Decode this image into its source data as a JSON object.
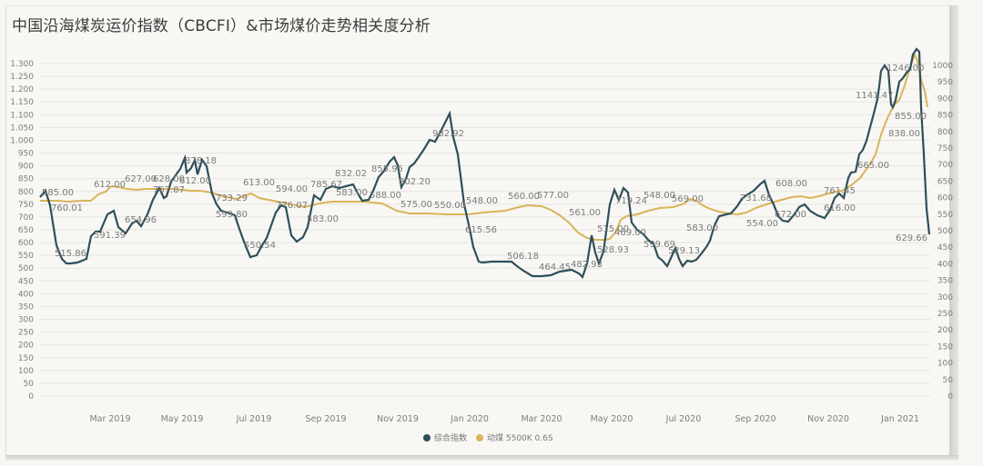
{
  "title": "中国沿海煤炭运价指数（CBCFI）&市场煤价走势相关度分析",
  "colors": {
    "cbcfi": "#2e4f5a",
    "coal": "#d9b45a",
    "grid": "#e6e5e1",
    "background": "#f8f7f4"
  },
  "legend": [
    {
      "label": "综合指数",
      "color": "#2e4f5a"
    },
    {
      "label": "动煤 5500K 0.6S",
      "color": "#d9b45a"
    }
  ],
  "chart_data": {
    "type": "line",
    "title": "中国沿海煤炭运价指数（CBCFI）&市场煤价走势相关度分析",
    "xlabel": "",
    "ylabel_left": "综合指数",
    "ylabel_right": "动煤 5500K",
    "x_tick_labels": [
      "Mar 2019",
      "May 2019",
      "Jul 2019",
      "Sep 2019",
      "Nov 2019",
      "Jan 2020",
      "Mar 2020",
      "May 2020",
      "Jul 2020",
      "Sep 2020",
      "Nov 2020",
      "Jan 2021"
    ],
    "y_left_ticks": [
      0,
      50,
      100,
      150,
      200,
      250,
      300,
      350,
      400,
      450,
      500,
      550,
      600,
      650,
      700,
      750,
      800,
      850,
      900,
      950,
      "1,000",
      "1,050",
      "1,100",
      "1,150",
      "1,200",
      "1,250",
      "1,300"
    ],
    "y_right_ticks": [
      0,
      50,
      100,
      150,
      200,
      250,
      300,
      350,
      400,
      450,
      500,
      550,
      600,
      650,
      700,
      750,
      800,
      850,
      900,
      950,
      1000
    ],
    "ylim_left": [
      0,
      1300
    ],
    "ylim_right": [
      0,
      1000
    ],
    "grid": true,
    "legend_position": "bottom-center",
    "series": [
      {
        "name": "综合指数",
        "axis": "left",
        "points": [
          [
            0.0,
            760
          ],
          [
            0.01,
            790
          ],
          [
            0.02,
            760
          ],
          [
            0.03,
            620
          ],
          [
            0.04,
            560
          ],
          [
            0.05,
            515.86
          ],
          [
            0.06,
            520
          ],
          [
            0.08,
            525
          ],
          [
            0.09,
            580
          ],
          [
            0.1,
            591.39
          ],
          [
            0.11,
            610
          ],
          [
            0.12,
            720
          ],
          [
            0.13,
            690
          ],
          [
            0.14,
            630
          ],
          [
            0.15,
            620
          ],
          [
            0.16,
            654.96
          ],
          [
            0.17,
            710
          ],
          [
            0.18,
            690
          ],
          [
            0.19,
            780
          ],
          [
            0.2,
            730
          ],
          [
            0.21,
            800
          ],
          [
            0.22,
            840
          ],
          [
            0.225,
            878.18
          ],
          [
            0.23,
            860
          ],
          [
            0.24,
            820
          ],
          [
            0.245,
            870
          ],
          [
            0.25,
            830
          ],
          [
            0.26,
            870
          ],
          [
            0.27,
            830
          ],
          [
            0.28,
            733.29
          ],
          [
            0.29,
            700
          ],
          [
            0.3,
            599.8
          ],
          [
            0.31,
            600
          ],
          [
            0.32,
            590
          ],
          [
            0.33,
            560
          ],
          [
            0.34,
            550.54
          ],
          [
            0.35,
            530
          ],
          [
            0.36,
            560
          ],
          [
            0.37,
            600
          ],
          [
            0.38,
            680
          ],
          [
            0.39,
            776.07
          ],
          [
            0.4,
            700
          ],
          [
            0.41,
            670
          ],
          [
            0.42,
            690
          ],
          [
            0.43,
            720
          ],
          [
            0.44,
            785.67
          ],
          [
            0.45,
            760
          ],
          [
            0.46,
            770
          ],
          [
            0.47,
            790
          ],
          [
            0.48,
            780
          ],
          [
            0.49,
            790
          ],
          [
            0.5,
            800
          ],
          [
            0.51,
            750
          ],
          [
            0.52,
            760
          ],
          [
            0.53,
            780
          ],
          [
            0.54,
            800
          ],
          [
            0.55,
            830
          ],
          [
            0.56,
            855.95
          ],
          [
            0.565,
            830
          ],
          [
            0.57,
            700
          ],
          [
            0.58,
            740
          ],
          [
            0.59,
            790
          ],
          [
            0.6,
            802.2
          ],
          [
            0.61,
            820
          ],
          [
            0.62,
            850
          ],
          [
            0.63,
            890
          ],
          [
            0.64,
            960
          ],
          [
            0.65,
            982.92
          ],
          [
            0.66,
            940
          ],
          [
            0.67,
            860
          ],
          [
            0.68,
            720
          ],
          [
            0.685,
            615.56
          ],
          [
            0.69,
            560
          ],
          [
            0.7,
            520
          ],
          [
            0.71,
            518
          ],
          [
            0.72,
            515
          ],
          [
            0.73,
            506.18
          ],
          [
            0.74,
            490
          ],
          [
            0.75,
            470
          ],
          [
            0.76,
            464.45
          ],
          [
            0.77,
            465
          ],
          [
            0.78,
            470
          ],
          [
            0.79,
            475
          ],
          [
            0.8,
            480
          ],
          [
            0.81,
            482.93
          ],
          [
            0.815,
            470
          ],
          [
            0.82,
            520
          ],
          [
            0.825,
            580
          ],
          [
            0.83,
            528.93
          ],
          [
            0.84,
            560
          ],
          [
            0.845,
            760
          ],
          [
            0.85,
            780
          ],
          [
            0.855,
            800
          ],
          [
            0.86,
            719.24
          ],
          [
            0.87,
            640
          ],
          [
            0.88,
            620
          ],
          [
            0.89,
            600
          ],
          [
            0.9,
            599.69
          ],
          [
            0.91,
            580
          ],
          [
            0.92,
            560
          ],
          [
            0.93,
            529.13
          ],
          [
            0.94,
            545
          ],
          [
            0.95,
            565
          ],
          [
            0.96,
            570
          ]
        ]
      },
      {
        "name": "动煤 5500K 0.6S",
        "axis": "right",
        "points": [
          [
            0.0,
            585
          ],
          [
            0.05,
            585
          ],
          [
            0.08,
            590
          ],
          [
            0.1,
            612
          ],
          [
            0.12,
            627
          ],
          [
            0.15,
            628
          ],
          [
            0.18,
            620
          ],
          [
            0.22,
            622
          ],
          [
            0.28,
            613
          ],
          [
            0.32,
            594
          ],
          [
            0.36,
            583
          ],
          [
            0.4,
            588
          ],
          [
            0.44,
            575
          ],
          [
            0.48,
            550
          ],
          [
            0.52,
            548
          ],
          [
            0.55,
            560
          ],
          [
            0.58,
            577
          ],
          [
            0.62,
            561
          ],
          [
            0.66,
            515
          ],
          [
            0.7,
            469
          ],
          [
            0.72,
            470
          ],
          [
            0.74,
            548
          ],
          [
            0.78,
            569
          ],
          [
            0.82,
            583
          ]
        ]
      }
    ],
    "data_labels_left": [
      "760.01",
      "515.86",
      "591.39",
      "654.96",
      "767.87",
      "878.18",
      "733.29",
      "599.80",
      "550.54",
      "776.07",
      "583.00",
      "785.67",
      "832.02",
      "855.95",
      "802.20",
      "982.92",
      "615.56",
      "506.18",
      "464.45",
      "482.93",
      "528.93",
      "719.24",
      "599.69",
      "529.13",
      "731.68",
      "672.00",
      "761.45",
      "1141.47",
      "1246.00",
      "629.66"
    ],
    "data_labels_right": [
      "585.00",
      "612.00",
      "627.00",
      "628.00",
      "612.00",
      "613.00",
      "594.00",
      "583.00",
      "588.00",
      "575.00",
      "550.00",
      "548.00",
      "560.00",
      "577.00",
      "561.00",
      "515.00",
      "469.00",
      "548.00",
      "569.00",
      "583.00",
      "554.00",
      "608.00",
      "616.00",
      "665.00",
      "838.00",
      "855.00"
    ]
  }
}
